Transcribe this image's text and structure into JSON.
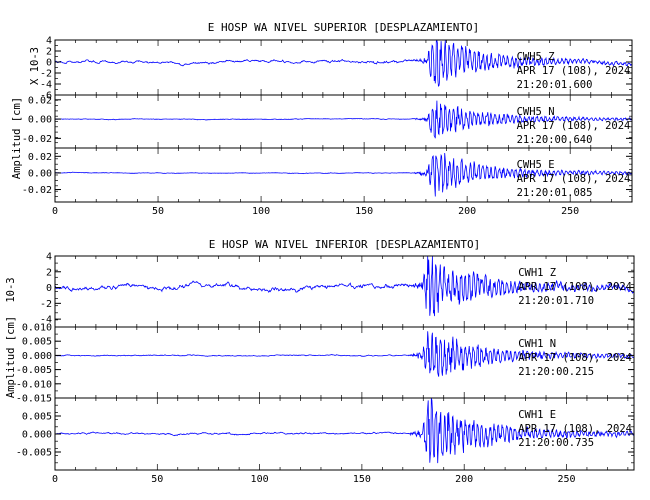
{
  "chart_data": [
    {
      "type": "line",
      "title": "E HOSP WA NIVEL SUPERIOR [DESPLAZAMIENTO]",
      "ylabel": "Amplitud [cm]",
      "top_scale_label": "X 10-3",
      "xlim": [
        0,
        280
      ],
      "x_ticks": [
        "0",
        "50",
        "100",
        "150",
        "200",
        "250"
      ],
      "traces": [
        {
          "name": "CWH5 Z",
          "date": "APR 17 (108), 2024",
          "time": "21:20:01.600",
          "ylim": [
            -6,
            4
          ],
          "y_ticks": [
            "4",
            "2",
            "0",
            "-2",
            "-4",
            "-6"
          ],
          "arrival_x": 181,
          "peak_amplitude": 4.5,
          "background_amplitude": 0.7,
          "color": "#0000ff"
        },
        {
          "name": "CWH5 N",
          "date": "APR 17 (108), 2024",
          "time": "21:20:00.640",
          "ylim": [
            -0.03,
            0.025
          ],
          "y_ticks": [
            "0.02",
            "0.00",
            "-0.02"
          ],
          "arrival_x": 181,
          "peak_amplitude": 0.02,
          "background_amplitude": 0.001,
          "color": "#0000ff"
        },
        {
          "name": "CWH5 E",
          "date": "APR 17 (108), 2024",
          "time": "21:20:01.085",
          "ylim": [
            -0.035,
            0.03
          ],
          "y_ticks": [
            "0.02",
            "0.00",
            "-0.02"
          ],
          "arrival_x": 181,
          "peak_amplitude": 0.027,
          "background_amplitude": 0.001,
          "color": "#0000ff"
        }
      ]
    },
    {
      "type": "line",
      "title": "E HOSP WA NIVEL INFERIOR [DESPLAZAMIENTO]",
      "ylabel": "Amplitud [cm]",
      "top_scale_label": "10-3",
      "xlim": [
        0,
        283
      ],
      "x_ticks": [
        "0",
        "50",
        "100",
        "150",
        "200",
        "250"
      ],
      "traces": [
        {
          "name": "CWH1 Z",
          "date": "APR 17 (108), 2024",
          "time": "21:20:01.710",
          "ylim": [
            -5,
            4
          ],
          "y_ticks": [
            "4",
            "2",
            "0",
            "-2",
            "-4"
          ],
          "arrival_x": 180,
          "peak_amplitude": 4.2,
          "background_amplitude": 0.9,
          "color": "#0000ff"
        },
        {
          "name": "CWH1 N",
          "date": "APR 17 (108), 2024",
          "time": "21:20:00.215",
          "ylim": [
            -0.015,
            0.01
          ],
          "y_ticks": [
            "0.010",
            "0.005",
            "0.000",
            "-0.005",
            "-0.010",
            "-0.015"
          ],
          "arrival_x": 180,
          "peak_amplitude": 0.01,
          "background_amplitude": 0.0005,
          "color": "#0000ff"
        },
        {
          "name": "CWH1 E",
          "date": "APR 17 (108), 2024",
          "time": "21:20:00.735",
          "ylim": [
            -0.01,
            0.01
          ],
          "y_ticks": [
            "0.005",
            "0.000",
            "-0.005"
          ],
          "arrival_x": 180,
          "peak_amplitude": 0.01,
          "background_amplitude": 0.0007,
          "color": "#0000ff"
        }
      ]
    }
  ]
}
